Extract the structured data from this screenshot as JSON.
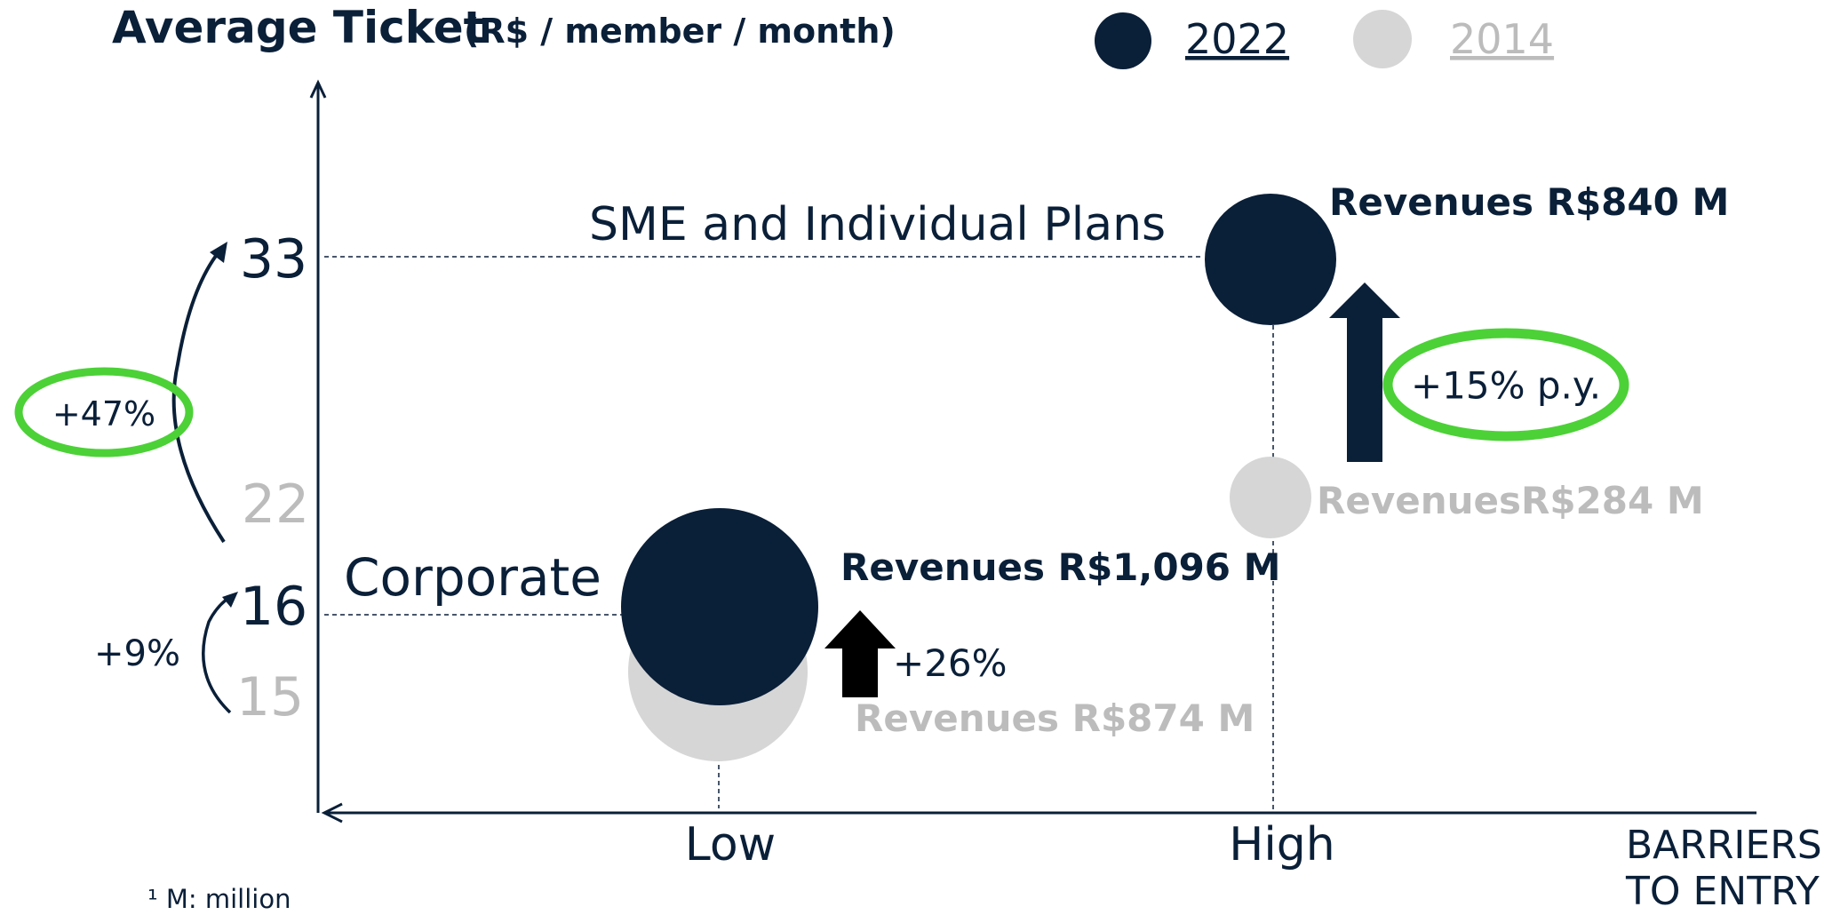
{
  "header": {
    "title": "Average Ticket",
    "subtitle": "(R$ / member / month)"
  },
  "legend": [
    "2022",
    "2014"
  ],
  "y_labels": [
    "33",
    "22",
    "16",
    "15"
  ],
  "segments": [
    {
      "name": "SME and Individual Plans",
      "revenue_2022": "Revenues R$840 M",
      "revenue_2014": "RevenuesR$284 M",
      "growth": "+15% p.y."
    },
    {
      "name": "Corporate",
      "revenue_2022": "Revenues R$1,096 M",
      "revenue_2014": "Revenues R$874 M",
      "growth": "+26%"
    }
  ],
  "ticket_growth": [
    "+47%",
    "+9%"
  ],
  "x_labels": [
    "Low",
    "High"
  ],
  "x_axis_label": [
    "BARRIERS",
    "TO ENTRY"
  ],
  "footnote": "¹ M: million"
}
